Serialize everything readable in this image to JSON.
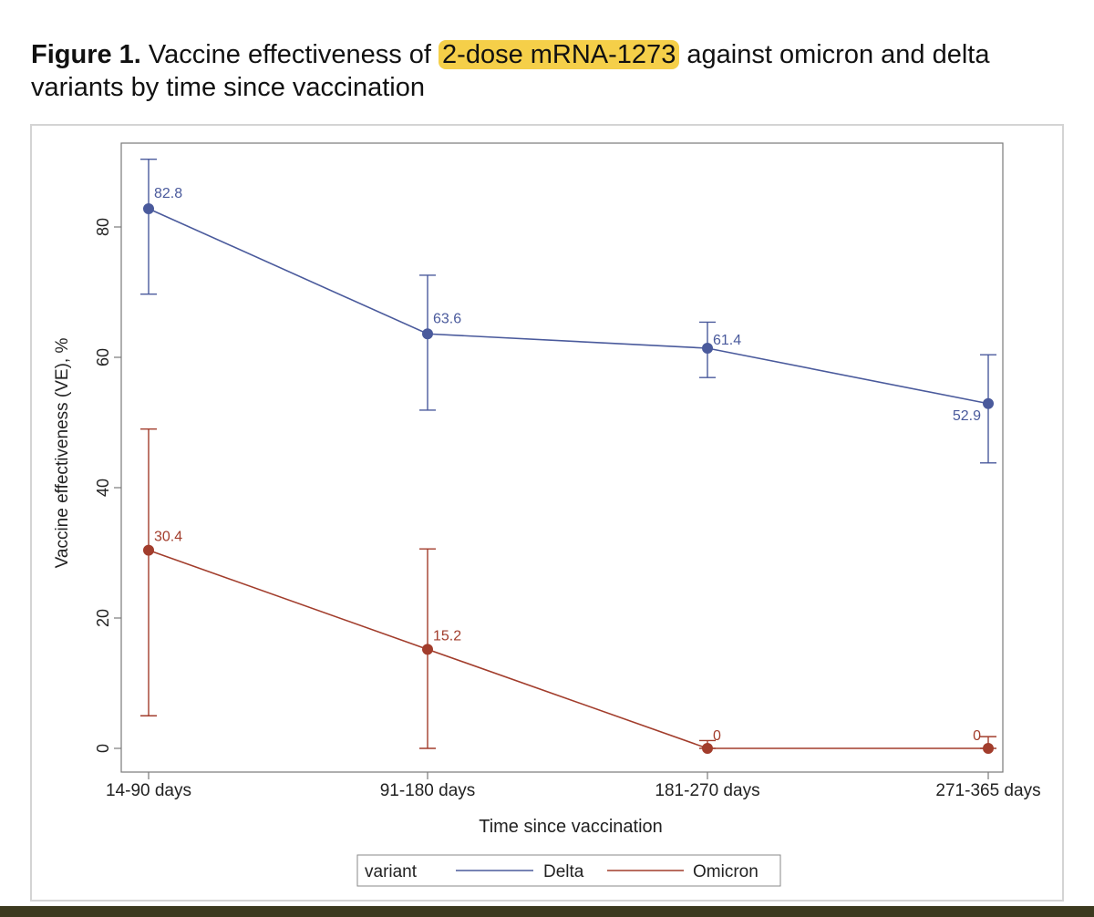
{
  "caption": {
    "label": "Figure 1.",
    "before": " Vaccine effectiveness of ",
    "highlight": "2-dose mRNA-1273",
    "after": " against omicron and delta variants by time since vaccination"
  },
  "colors": {
    "delta": "#4a5a9c",
    "omicron": "#a23d2c",
    "axis": "#6e6e6e",
    "text": "#222222",
    "highlight": "#f5cf49"
  },
  "chart_data": {
    "type": "line",
    "categories": [
      "14-90 days",
      "91-180 days",
      "181-270 days",
      "271-365 days"
    ],
    "xlabel": "Time since vaccination",
    "ylabel": "Vaccine effectiveness (VE), %",
    "ylim": [
      -1.5,
      91
    ],
    "yticks": [
      "0",
      "20",
      "40",
      "60",
      "80"
    ],
    "legend": {
      "title": "variant",
      "position": "bottom-center"
    },
    "series": [
      {
        "name": "Delta",
        "values": [
          82.8,
          63.6,
          61.4,
          52.9
        ],
        "labels": [
          "82.8",
          "63.6",
          "61.4",
          "52.9"
        ],
        "ci_lower": [
          69.7,
          51.9,
          56.9,
          43.8
        ],
        "ci_upper": [
          90.4,
          72.6,
          65.4,
          60.4
        ]
      },
      {
        "name": "Omicron",
        "values": [
          30.4,
          15.2,
          0,
          0
        ],
        "labels": [
          "30.4",
          "15.2",
          "0",
          "0"
        ],
        "ci_lower": [
          5.0,
          0,
          0,
          0
        ],
        "ci_upper": [
          49.0,
          30.6,
          1.2,
          1.8
        ]
      }
    ]
  }
}
